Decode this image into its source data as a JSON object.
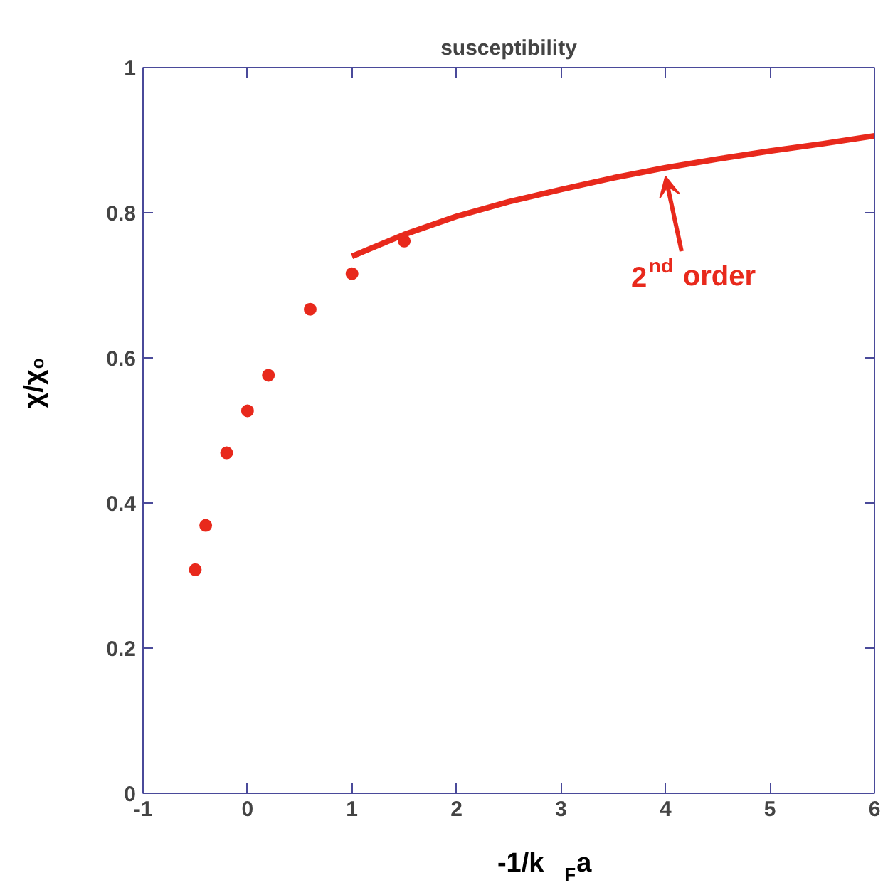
{
  "chart_data": {
    "type": "scatter",
    "title": "susceptibility",
    "xlabel": "-1/k$_{F}$a",
    "ylabel": "χ/χ₀",
    "xlim": [
      -1,
      6
    ],
    "ylim": [
      0,
      1
    ],
    "xticks": [
      -1,
      0,
      1,
      2,
      3,
      4,
      5,
      6
    ],
    "yticks": [
      0,
      0.2,
      0.4,
      0.6,
      0.8,
      1
    ],
    "grid": false,
    "series": [
      {
        "color": "#e8291c",
        "marker": "circle",
        "x": [
          -0.5,
          -0.4,
          -0.2,
          0,
          0.2,
          0.6,
          1,
          1.5
        ],
        "values": [
          0.308,
          0.369,
          0.469,
          0.527,
          0.576,
          0.667,
          0.716,
          0.761
        ]
      },
      {
        "type": "line",
        "color": "#e8291c",
        "x": [
          1,
          1.5,
          2,
          2.5,
          3,
          3.5,
          4,
          4.5,
          5,
          5.5,
          6
        ],
        "values": [
          0.74,
          0.77,
          0.795,
          0.815,
          0.832,
          0.848,
          0.862,
          0.874,
          0.885,
          0.895,
          0.906
        ]
      }
    ],
    "annotations": [
      {
        "text": "2$^{nd}$ order",
        "x": 4,
        "y": 0.862
      }
    ]
  }
}
